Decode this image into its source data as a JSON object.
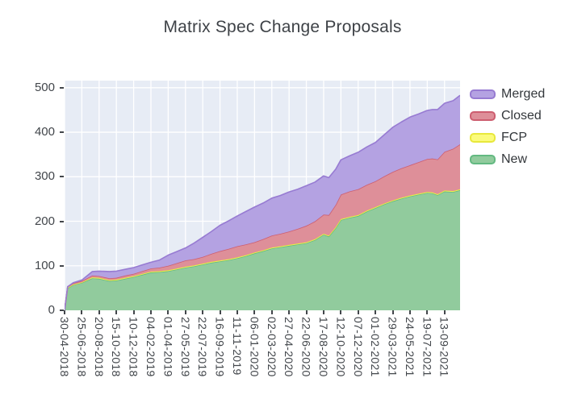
{
  "chart_data": {
    "type": "area",
    "title": "Matrix Spec Change Proposals",
    "stacked": true,
    "grid": true,
    "legend_position": "right",
    "plot_bg": "#e7ecf5",
    "grid_color": "#ffffff",
    "tick_color": "#42464b",
    "x_tick_labels": [
      "30-04-2018",
      "25-06-2018",
      "20-08-2018",
      "15-10-2018",
      "10-12-2018",
      "04-02-2019",
      "01-04-2019",
      "27-05-2019",
      "22-07-2019",
      "16-09-2019",
      "11-11-2019",
      "06-01-2020",
      "02-03-2020",
      "27-04-2020",
      "22-06-2020",
      "17-08-2020",
      "12-10-2020",
      "07-12-2020",
      "01-02-2021",
      "29-03-2021",
      "24-05-2021",
      "19-07-2021",
      "13-09-2021"
    ],
    "x_tick_values": [
      0,
      1,
      2,
      3,
      4,
      5,
      6,
      7,
      8,
      9,
      10,
      11,
      12,
      13,
      14,
      15,
      16,
      17,
      18,
      19,
      20,
      21,
      22
    ],
    "x_range": [
      0,
      22.9
    ],
    "ylim": [
      0,
      500
    ],
    "y_ticks": [
      0,
      100,
      200,
      300,
      400,
      500
    ],
    "y_display_max": 516,
    "x": [
      0,
      0.18,
      0.5,
      1,
      1.6,
      2,
      2.6,
      3,
      3.5,
      4,
      4.5,
      5,
      5.5,
      6,
      6.5,
      7,
      7.5,
      8,
      8.5,
      9,
      9.5,
      10,
      10.5,
      11,
      11.5,
      12,
      12.5,
      13,
      13.5,
      14,
      14.5,
      15,
      15.3,
      15.7,
      16,
      16.5,
      17,
      17.5,
      18,
      18.5,
      19,
      19.5,
      20,
      20.5,
      21,
      21.3,
      21.6,
      22,
      22.5,
      22.9
    ],
    "series": [
      {
        "name": "New",
        "line": "#63b981",
        "fill": "#91cb9d",
        "values": [
          0,
          50,
          57,
          62,
          72,
          71,
          66,
          67,
          71,
          75,
          80,
          85,
          86,
          88,
          92,
          96,
          99,
          103,
          107,
          110,
          113,
          117,
          122,
          128,
          133,
          139,
          142,
          145,
          148,
          151,
          158,
          170,
          166,
          185,
          203,
          208,
          212,
          222,
          230,
          238,
          245,
          251,
          256,
          260,
          264,
          263,
          259,
          267,
          266,
          270
        ]
      },
      {
        "name": "FCP",
        "line": "#e8e83c",
        "fill": "#fbfb7c",
        "values": [
          0,
          1,
          1,
          1,
          2,
          2,
          2,
          2,
          2,
          2,
          2,
          2,
          2,
          2,
          2,
          2,
          2,
          2,
          2,
          2,
          2,
          2,
          2,
          2,
          2,
          2,
          2,
          2,
          2,
          2,
          2,
          2,
          2,
          2,
          2,
          2,
          2,
          2,
          2,
          2,
          2,
          2,
          2,
          2,
          2,
          2,
          2,
          2,
          2,
          2
        ]
      },
      {
        "name": "Closed",
        "line": "#cd5e70",
        "fill": "#de8f99",
        "values": [
          0,
          2,
          3,
          3,
          4,
          4,
          4,
          4,
          5,
          5,
          6,
          7,
          8,
          10,
          12,
          14,
          14,
          15,
          18,
          21,
          23,
          25,
          24,
          23,
          25,
          27,
          28,
          30,
          33,
          37,
          40,
          43,
          46,
          50,
          55,
          57,
          58,
          58,
          58,
          61,
          64,
          66,
          68,
          71,
          74,
          76,
          78,
          87,
          95,
          101
        ]
      },
      {
        "name": "Merged",
        "line": "#977bd2",
        "fill": "#b4a2e2",
        "values": [
          0,
          0,
          1,
          2,
          9,
          11,
          15,
          15,
          14,
          14,
          14,
          14,
          17,
          24,
          26,
          28,
          36,
          44,
          50,
          58,
          63,
          68,
          74,
          79,
          81,
          84,
          86,
          89,
          89,
          90,
          88,
          87,
          84,
          80,
          78,
          80,
          83,
          85,
          87,
          93,
          100,
          104,
          108,
          108,
          109,
          110,
          112,
          109,
          108,
          110
        ]
      }
    ],
    "legend_order": [
      "Merged",
      "Closed",
      "FCP",
      "New"
    ]
  }
}
